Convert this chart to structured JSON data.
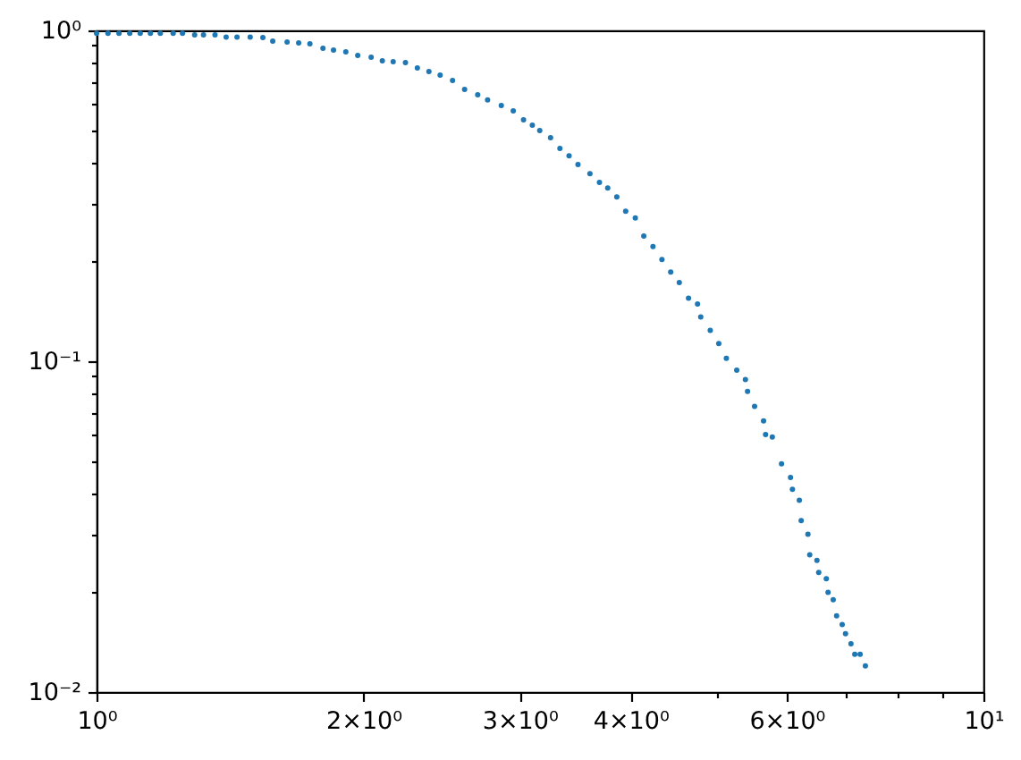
{
  "chart_data": {
    "type": "scatter",
    "log": "xy",
    "grid": false,
    "marker": "circle",
    "color": "#1f77b4",
    "xlim": [
      1,
      10
    ],
    "ylim": [
      0.01,
      1
    ],
    "xticks": [
      {
        "value": 1,
        "label": "10⁰"
      },
      {
        "value": 2,
        "label": "2×10⁰"
      },
      {
        "value": 3,
        "label": "3×10⁰"
      },
      {
        "value": 4,
        "label": "4×10⁰"
      },
      {
        "value": 5,
        "label": null
      },
      {
        "value": 6,
        "label": "6×10⁰"
      },
      {
        "value": 7,
        "label": null
      },
      {
        "value": 8,
        "label": null
      },
      {
        "value": 9,
        "label": null
      },
      {
        "value": 10,
        "label": "10¹"
      }
    ],
    "yticks": [
      {
        "value": 0.01,
        "label": "10⁻²"
      },
      {
        "value": 0.02,
        "label": null
      },
      {
        "value": 0.03,
        "label": null
      },
      {
        "value": 0.04,
        "label": null
      },
      {
        "value": 0.05,
        "label": null
      },
      {
        "value": 0.06,
        "label": null
      },
      {
        "value": 0.07,
        "label": null
      },
      {
        "value": 0.08,
        "label": null
      },
      {
        "value": 0.09,
        "label": null
      },
      {
        "value": 0.1,
        "label": "10⁻¹"
      },
      {
        "value": 0.2,
        "label": null
      },
      {
        "value": 0.3,
        "label": null
      },
      {
        "value": 0.4,
        "label": null
      },
      {
        "value": 0.5,
        "label": null
      },
      {
        "value": 0.6,
        "label": null
      },
      {
        "value": 0.7,
        "label": null
      },
      {
        "value": 0.8,
        "label": null
      },
      {
        "value": 0.9,
        "label": null
      },
      {
        "value": 1,
        "label": "10⁰"
      }
    ],
    "x": [
      1.0,
      1.03,
      1.06,
      1.09,
      1.12,
      1.15,
      1.18,
      1.22,
      1.25,
      1.29,
      1.32,
      1.36,
      1.4,
      1.44,
      1.49,
      1.54,
      1.58,
      1.64,
      1.69,
      1.74,
      1.8,
      1.85,
      1.91,
      1.97,
      2.04,
      2.1,
      2.16,
      2.23,
      2.3,
      2.37,
      2.44,
      2.52,
      2.6,
      2.69,
      2.76,
      2.86,
      2.95,
      3.03,
      3.1,
      3.16,
      3.25,
      3.33,
      3.41,
      3.49,
      3.6,
      3.69,
      3.77,
      3.86,
      3.95,
      4.05,
      4.14,
      4.24,
      4.34,
      4.44,
      4.54,
      4.65,
      4.76,
      4.8,
      4.92,
      5.03,
      5.13,
      5.27,
      5.39,
      5.42,
      5.52,
      5.65,
      5.68,
      5.78,
      5.92,
      6.06,
      6.09,
      6.2,
      6.23,
      6.34,
      6.37,
      6.49,
      6.52,
      6.65,
      6.68,
      6.77,
      6.83,
      6.93,
      6.99,
      7.09,
      7.16,
      7.26,
      7.36
    ],
    "values": [
      0.98,
      0.98,
      0.98,
      0.98,
      0.98,
      0.98,
      0.98,
      0.98,
      0.98,
      0.97,
      0.97,
      0.97,
      0.955,
      0.955,
      0.955,
      0.951,
      0.928,
      0.922,
      0.917,
      0.911,
      0.883,
      0.872,
      0.861,
      0.84,
      0.83,
      0.809,
      0.804,
      0.799,
      0.77,
      0.751,
      0.733,
      0.706,
      0.663,
      0.639,
      0.616,
      0.593,
      0.571,
      0.537,
      0.517,
      0.498,
      0.474,
      0.44,
      0.418,
      0.393,
      0.369,
      0.347,
      0.334,
      0.314,
      0.284,
      0.271,
      0.239,
      0.222,
      0.203,
      0.186,
      0.173,
      0.155,
      0.149,
      0.136,
      0.124,
      0.113,
      0.102,
      0.094,
      0.088,
      0.081,
      0.073,
      0.066,
      0.06,
      0.059,
      0.049,
      0.0445,
      0.041,
      0.038,
      0.033,
      0.03,
      0.026,
      0.025,
      0.023,
      0.022,
      0.02,
      0.019,
      0.017,
      0.016,
      0.015,
      0.014,
      0.013,
      0.013,
      0.012
    ]
  }
}
